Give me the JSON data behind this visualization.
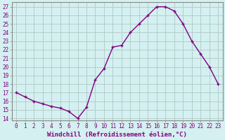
{
  "x": [
    0,
    1,
    2,
    3,
    4,
    5,
    6,
    7,
    8,
    9,
    10,
    11,
    12,
    13,
    14,
    15,
    16,
    17,
    18,
    19,
    20,
    21,
    22,
    23
  ],
  "y": [
    17,
    16.5,
    16,
    15.7,
    15.4,
    15.2,
    14.8,
    14,
    15.3,
    18.5,
    19.8,
    22.3,
    22.5,
    24,
    25,
    26,
    27,
    27,
    26.5,
    25,
    23,
    21.5,
    20,
    18
  ],
  "line_color": "#800080",
  "marker": "+",
  "bg_color": "#d4f0f0",
  "grid_color": "#b0c8c8",
  "title": "",
  "xlabel": "Windchill (Refroidissement éolien,°C)",
  "ylabel": "",
  "ylim": [
    13.8,
    27.5
  ],
  "xlim": [
    -0.5,
    23.5
  ],
  "yticks": [
    14,
    15,
    16,
    17,
    18,
    19,
    20,
    21,
    22,
    23,
    24,
    25,
    26,
    27
  ],
  "xticks": [
    0,
    1,
    2,
    3,
    4,
    5,
    6,
    7,
    8,
    9,
    10,
    11,
    12,
    13,
    14,
    15,
    16,
    17,
    18,
    19,
    20,
    21,
    22,
    23
  ],
  "font_color": "#800080",
  "tick_font_size": 5.5,
  "xlabel_font_size": 6.5,
  "line_width": 1.0,
  "marker_size": 3.5
}
